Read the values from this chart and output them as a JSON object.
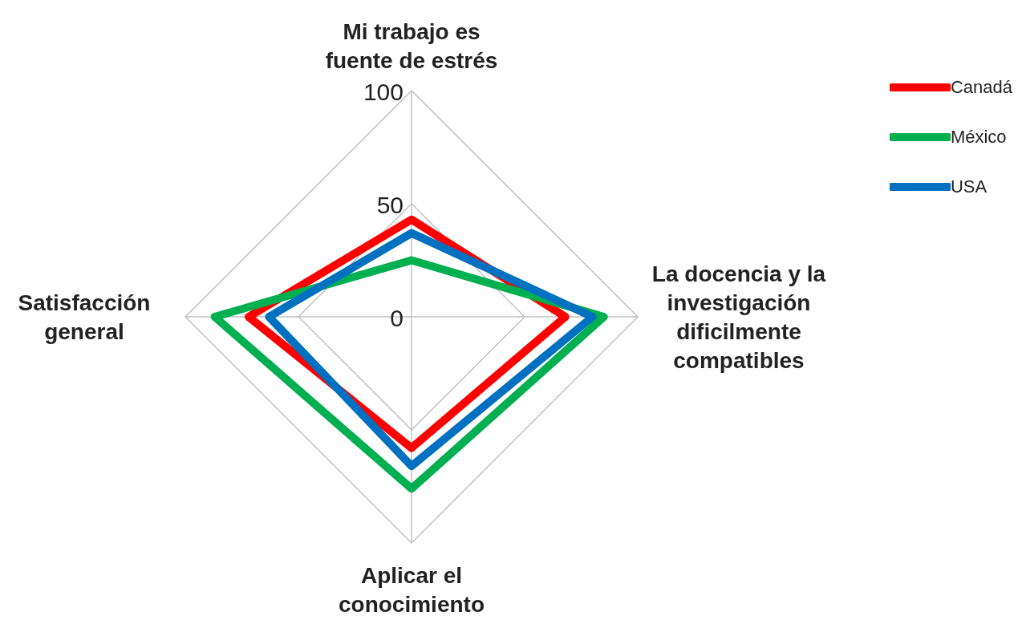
{
  "chart_data": {
    "type": "radar",
    "categories": [
      "Mi trabajo es fuente de estrés",
      "La docencia y la investigación dificilmente compatibles",
      "Aplicar el conocimiento",
      "Satisfacción general"
    ],
    "ylim": [
      0,
      100
    ],
    "yticks": [
      0,
      50,
      100
    ],
    "grid": true,
    "legend": "top right",
    "marker": "none",
    "series": [
      {
        "name": "Canadá",
        "color": "#ff0000",
        "values": [
          43,
          68,
          58,
          72
        ]
      },
      {
        "name": "México",
        "color": "#00b050",
        "values": [
          25,
          85,
          76,
          87
        ]
      },
      {
        "name": "USA",
        "color": "#0070c0",
        "values": [
          37,
          80,
          66,
          63
        ]
      }
    ]
  }
}
